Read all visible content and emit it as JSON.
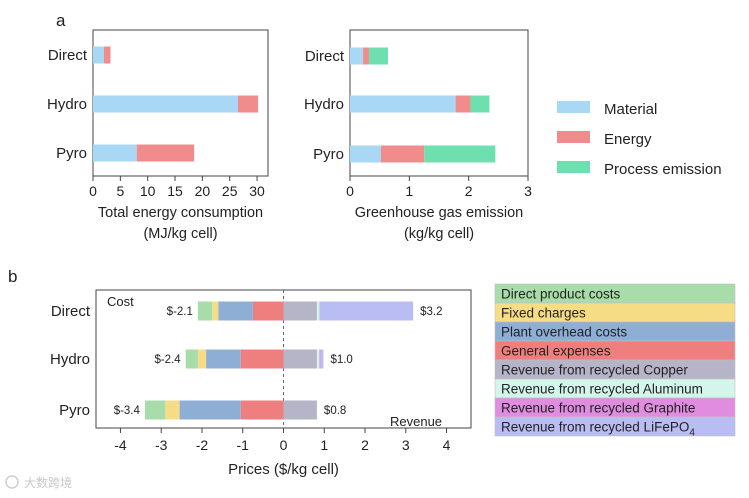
{
  "colors": {
    "material": "#a8d8f4",
    "energy": "#f08c8c",
    "process_emission": "#6ee0b0",
    "direct_product_costs": "#a9dcab",
    "fixed_charges": "#f6dd85",
    "plant_overhead_costs": "#8faed6",
    "general_expenses": "#ef7f7f",
    "revenue_copper": "#b6b5c8",
    "revenue_aluminum": "#d4f5ea",
    "revenue_graphite": "#e08de0",
    "revenue_lifepo4": "#b9bdf4",
    "axis": "#444444",
    "zero_line": "#666666"
  },
  "chart_data": [
    {
      "panel": "a",
      "panel_label": "a",
      "type": "bar",
      "orientation": "horizontal",
      "stacked": true,
      "categories": [
        "Direct",
        "Hydro",
        "Pyro"
      ],
      "series": [
        {
          "name": "Material",
          "color_key": "material",
          "values": [
            2.0,
            26.5,
            8.0
          ]
        },
        {
          "name": "Energy",
          "color_key": "energy",
          "values": [
            1.2,
            3.7,
            10.5
          ]
        }
      ],
      "xlabel": "Total energy consumption",
      "xlabel_unit": "(MJ/kg cell)",
      "xlim": [
        0,
        32
      ],
      "xticks": [
        "0",
        "5",
        "10",
        "15",
        "20",
        "25",
        "30"
      ],
      "xtick_values": [
        0,
        5,
        10,
        15,
        20,
        25,
        30
      ]
    },
    {
      "panel": "a",
      "type": "bar",
      "orientation": "horizontal",
      "stacked": true,
      "categories": [
        "Direct",
        "Hydro",
        "Pyro"
      ],
      "series": [
        {
          "name": "Material",
          "color_key": "material",
          "values": [
            0.22,
            1.78,
            0.52
          ]
        },
        {
          "name": "Energy",
          "color_key": "energy",
          "values": [
            0.1,
            0.25,
            0.73
          ]
        },
        {
          "name": "Process emission",
          "color_key": "process_emission",
          "values": [
            0.32,
            0.32,
            1.2
          ]
        }
      ],
      "xlabel": "Greenhouse gas emission",
      "xlabel_unit": "(kg/kg cell)",
      "xlim": [
        0,
        3
      ],
      "xticks": [
        "0",
        "1",
        "2",
        "3"
      ],
      "xtick_values": [
        0,
        1,
        2,
        3
      ],
      "legend": {
        "position": "right",
        "entries": [
          {
            "label": "Material",
            "color_key": "material"
          },
          {
            "label": "Energy",
            "color_key": "energy"
          },
          {
            "label": "Process emission",
            "color_key": "process_emission"
          }
        ]
      }
    },
    {
      "panel": "b",
      "panel_label": "b",
      "type": "bar",
      "orientation": "horizontal",
      "stacked": "diverging",
      "categories": [
        "Direct",
        "Hydro",
        "Pyro"
      ],
      "cost_label": "Cost",
      "revenue_label": "Revenue",
      "cost_totals": [
        "$-2.1",
        "$-2.4",
        "$-3.4"
      ],
      "revenue_totals": [
        "$3.2",
        "$1.0",
        "$0.8"
      ],
      "cost_series": [
        {
          "name": "General expenses",
          "color_key": "general_expenses",
          "values": [
            -0.75,
            -1.05,
            -1.05
          ]
        },
        {
          "name": "Plant overhead costs",
          "color_key": "plant_overhead_costs",
          "values": [
            -0.85,
            -0.85,
            -1.5
          ]
        },
        {
          "name": "Fixed charges",
          "color_key": "fixed_charges",
          "values": [
            -0.15,
            -0.2,
            -0.35
          ]
        },
        {
          "name": "Direct product costs",
          "color_key": "direct_product_costs",
          "values": [
            -0.35,
            -0.3,
            -0.5
          ]
        }
      ],
      "revenue_series": [
        {
          "name": "Revenue from recycled Copper",
          "color_key": "revenue_copper",
          "values": [
            0.82,
            0.82,
            0.82
          ]
        },
        {
          "name": "Revenue from recycled Aluminum",
          "color_key": "revenue_aluminum",
          "values": [
            0.06,
            0.06,
            0.0
          ]
        },
        {
          "name": "Revenue from recycled Graphite",
          "color_key": "revenue_graphite",
          "values": [
            0.0,
            0.03,
            0.0
          ]
        },
        {
          "name": "Revenue from recycled LiFePO4",
          "color_key": "revenue_lifepo4",
          "values": [
            2.3,
            0.07,
            0.0
          ]
        }
      ],
      "xlabel": "Prices ($/kg cell)",
      "xlim": [
        -4.6,
        4.6
      ],
      "xticks": [
        "-4",
        "-3",
        "-2",
        "-1",
        "0",
        "1",
        "2",
        "3",
        "4"
      ],
      "xtick_values": [
        -4,
        -3,
        -2,
        -1,
        0,
        1,
        2,
        3,
        4
      ],
      "legend": {
        "position": "right",
        "entries": [
          {
            "label": "Direct product costs",
            "color_key": "direct_product_costs"
          },
          {
            "label": "Fixed charges",
            "color_key": "fixed_charges"
          },
          {
            "label": "Plant overhead costs",
            "color_key": "plant_overhead_costs"
          },
          {
            "label": "General expenses",
            "color_key": "general_expenses"
          },
          {
            "label": "Revenue from recycled Copper",
            "color_key": "revenue_copper"
          },
          {
            "label": "Revenue from recycled Aluminum",
            "color_key": "revenue_aluminum"
          },
          {
            "label": "Revenue from recycled Graphite",
            "color_key": "revenue_graphite"
          },
          {
            "label": "Revenue from recycled LiFePO",
            "subscript": "4",
            "color_key": "revenue_lifepo4"
          }
        ]
      }
    }
  ],
  "watermark": "大数跨境"
}
